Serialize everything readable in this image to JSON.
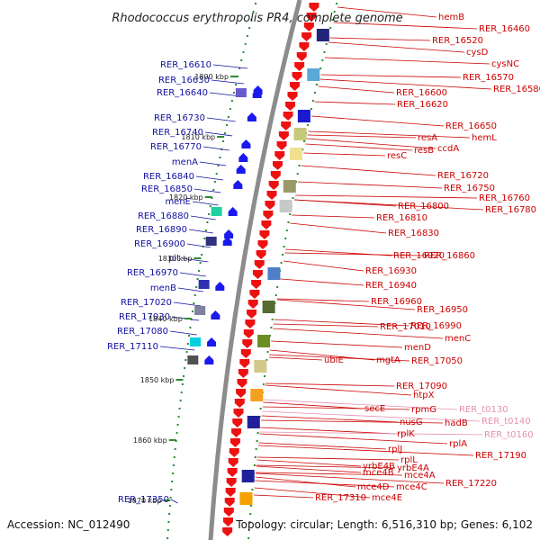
{
  "title": "Rhodococcus erythropolis PR4, complete genome",
  "footer": {
    "accession": "Accession: NC_012490",
    "topology": "Topology: circular; Length: 6,516,310 bp; Genes: 6,102"
  },
  "colors": {
    "backbone": "#8c8c8c",
    "tick": "#2e8b2e",
    "left_label": "#1010a0",
    "right_label": "#cc0000",
    "rna_label": "#e690b0",
    "red_arrow": "#ee1111",
    "blue_arrow": "#1a1aee"
  },
  "kbp_marks": [
    "1800 kbp",
    "1810 kbp",
    "1820 kbp",
    "1830 kbp",
    "1840 kbp",
    "1850 kbp",
    "1860 kbp",
    "1870 kbp"
  ],
  "left_genes": [
    "RER_16610",
    "RER_16630",
    "RER_16640",
    "RER_16730",
    "RER_16740",
    "RER_16770",
    "menA",
    "RER_16840",
    "RER_16850",
    "menE",
    "RER_16880",
    "RER_16890",
    "RER_16900",
    "pit",
    "RER_16970",
    "menB",
    "RER_17020",
    "RER_17030",
    "RER_17080",
    "RER_17110",
    "RER_17350"
  ],
  "right_genes": [
    "hemB",
    "RER_16460",
    "RER_16520",
    "cysD",
    "cysNC",
    "RER_16570",
    "RER_16580",
    "RER_16600",
    "RER_16620",
    "RER_16650",
    "hemL",
    "resA",
    "ccdA",
    "resB",
    "resC",
    "RER_16720",
    "RER_16750",
    "RER_16760",
    "RER_16780",
    "RER_16800",
    "RER_16810",
    "RER_16830",
    "RER_16920",
    "RER_16860",
    "RER_16930",
    "RER_16940",
    "RER_16960",
    "RER_16950",
    "RER_16990",
    "RER_17010",
    "menC",
    "menD",
    "ubiE",
    "mgtA",
    "RER_17050",
    "RER_17090",
    "htpX",
    "secE",
    "rpmG",
    "RER_t0130",
    "nusG",
    "hadB",
    "RER_t0140",
    "rplK",
    "RER_t0160",
    "rplA",
    "rplJ",
    "rplL",
    "RER_17190",
    "yrbE4B",
    "yrbE4A",
    "RER_17220",
    "mce4B",
    "mce4A",
    "mce4D",
    "mce4C",
    "RER_17310",
    "mce4E"
  ]
}
